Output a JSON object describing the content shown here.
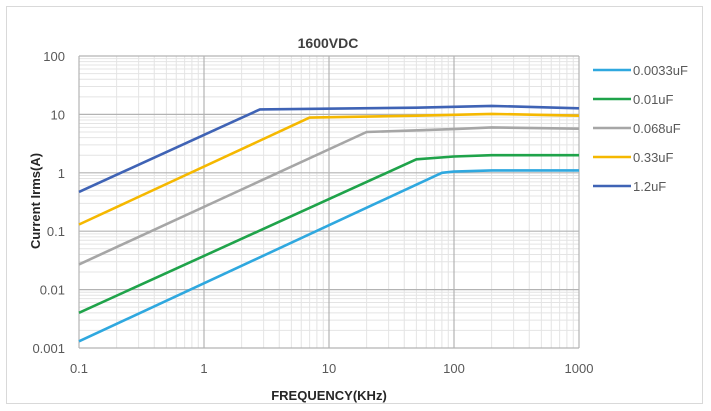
{
  "chart_data": {
    "type": "line",
    "title": "1600VDC",
    "xlabel": "FREQUENCY(KHz)",
    "ylabel": "Current Irms(A)",
    "xscale": "log",
    "yscale": "log",
    "xlim": [
      0.1,
      1000
    ],
    "ylim": [
      0.001,
      100
    ],
    "x_ticks": [
      "0.1",
      "1",
      "10",
      "100",
      "1000"
    ],
    "y_ticks": [
      "0.001",
      "0.01",
      "0.1",
      "1",
      "10",
      "100"
    ],
    "grid": true,
    "legend_position": "right",
    "series": [
      {
        "name": "0.0033uF",
        "color": "#2fa8df",
        "x": [
          0.1,
          80,
          100,
          200,
          1000
        ],
        "y": [
          0.0013,
          1.0,
          1.05,
          1.1,
          1.1
        ]
      },
      {
        "name": "0.01uF",
        "color": "#1fa34a",
        "x": [
          0.1,
          50,
          100,
          200,
          1000
        ],
        "y": [
          0.004,
          1.7,
          1.9,
          2.0,
          2.0
        ]
      },
      {
        "name": "0.068uF",
        "color": "#a6a6a6",
        "x": [
          0.1,
          20,
          100,
          200,
          1000
        ],
        "y": [
          0.027,
          5.0,
          5.6,
          6.0,
          5.7
        ]
      },
      {
        "name": "0.33uF",
        "color": "#f5b800",
        "x": [
          0.1,
          7,
          50,
          200,
          1000
        ],
        "y": [
          0.13,
          8.8,
          9.5,
          10.2,
          9.5
        ]
      },
      {
        "name": "1.2uF",
        "color": "#3f63b5",
        "x": [
          0.1,
          2.8,
          50,
          200,
          1000
        ],
        "y": [
          0.47,
          12.2,
          13.0,
          14.0,
          12.7
        ]
      }
    ]
  }
}
